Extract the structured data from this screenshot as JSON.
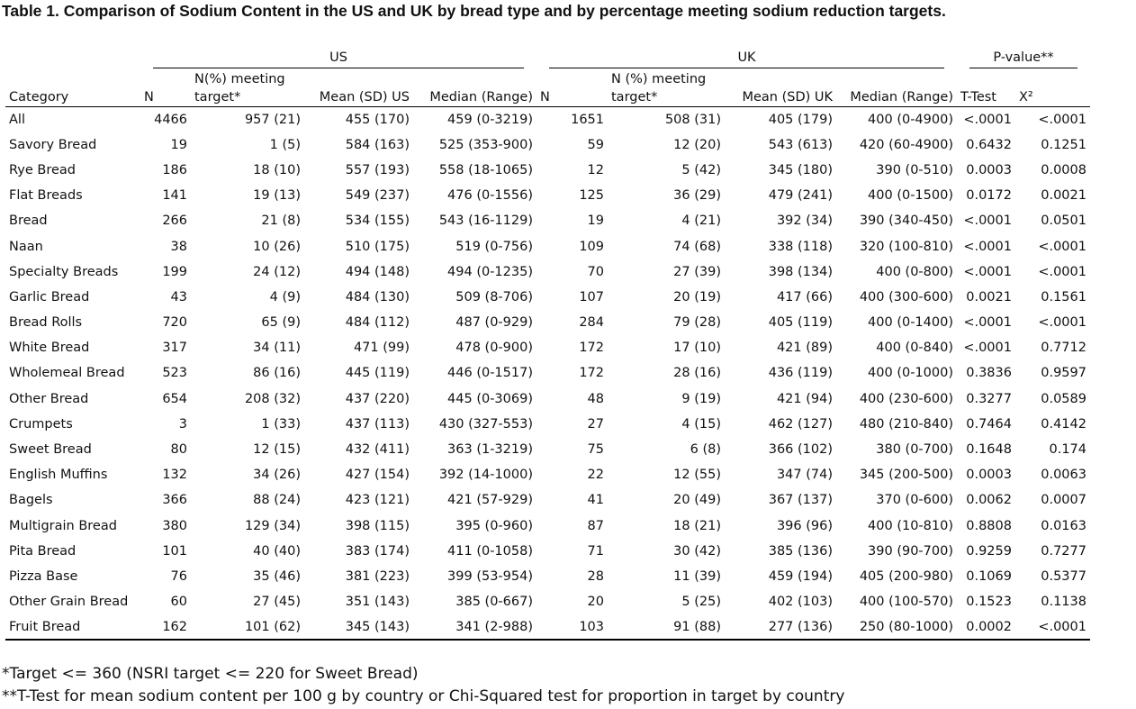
{
  "title": "Table 1. Comparison of Sodium Content in the US and UK by bread type and by percentage meeting sodium reduction targets.",
  "groups": {
    "us": "US",
    "uk": "UK",
    "pvalue": "P-value**"
  },
  "headers": {
    "category": "Category",
    "us_n": "N",
    "us_target_line1": "N(%) meeting",
    "us_target_line2": "target*",
    "us_mean": "Mean (SD) US",
    "us_median": "Median (Range)",
    "uk_n": "N",
    "uk_target_line1": "N (%) meeting",
    "uk_target_line2": "target*",
    "uk_mean": "Mean (SD) UK",
    "uk_median": "Median (Range)",
    "ttest": "T-Test",
    "chisq": "X²"
  },
  "rows": [
    [
      "All",
      "4466",
      "957 (21)",
      "455 (170)",
      "459 (0-3219)",
      "1651",
      "508 (31)",
      "405 (179)",
      "400 (0-4900)",
      "<.0001",
      "<.0001"
    ],
    [
      "Savory Bread",
      "19",
      "1 (5)",
      "584 (163)",
      "525 (353-900)",
      "59",
      "12 (20)",
      "543 (613)",
      "420 (60-4900)",
      "0.6432",
      "0.1251"
    ],
    [
      "Rye Bread",
      "186",
      "18 (10)",
      "557 (193)",
      "558 (18-1065)",
      "12",
      "5 (42)",
      "345 (180)",
      "390 (0-510)",
      "0.0003",
      "0.0008"
    ],
    [
      "Flat Breads",
      "141",
      "19 (13)",
      "549 (237)",
      "476 (0-1556)",
      "125",
      "36 (29)",
      "479 (241)",
      "400 (0-1500)",
      "0.0172",
      "0.0021"
    ],
    [
      "Bread",
      "266",
      "21 (8)",
      "534 (155)",
      "543 (16-1129)",
      "19",
      "4 (21)",
      "392 (34)",
      "390 (340-450)",
      "<.0001",
      "0.0501"
    ],
    [
      "Naan",
      "38",
      "10 (26)",
      "510 (175)",
      "519 (0-756)",
      "109",
      "74 (68)",
      "338 (118)",
      "320 (100-810)",
      "<.0001",
      "<.0001"
    ],
    [
      "Specialty Breads",
      "199",
      "24 (12)",
      "494 (148)",
      "494 (0-1235)",
      "70",
      "27 (39)",
      "398 (134)",
      "400 (0-800)",
      "<.0001",
      "<.0001"
    ],
    [
      "Garlic Bread",
      "43",
      "4 (9)",
      "484 (130)",
      "509 (8-706)",
      "107",
      "20 (19)",
      "417 (66)",
      "400 (300-600)",
      "0.0021",
      "0.1561"
    ],
    [
      "Bread Rolls",
      "720",
      "65 (9)",
      "484 (112)",
      "487 (0-929)",
      "284",
      "79 (28)",
      "405 (119)",
      "400 (0-1400)",
      "<.0001",
      "<.0001"
    ],
    [
      "White Bread",
      "317",
      "34 (11)",
      "471 (99)",
      "478 (0-900)",
      "172",
      "17 (10)",
      "421 (89)",
      "400 (0-840)",
      "<.0001",
      "0.7712"
    ],
    [
      "Wholemeal Bread",
      "523",
      "86 (16)",
      "445 (119)",
      "446 (0-1517)",
      "172",
      "28 (16)",
      "436 (119)",
      "400 (0-1000)",
      "0.3836",
      "0.9597"
    ],
    [
      "Other Bread",
      "654",
      "208 (32)",
      "437 (220)",
      "445 (0-3069)",
      "48",
      "9 (19)",
      "421 (94)",
      "400 (230-600)",
      "0.3277",
      "0.0589"
    ],
    [
      "Crumpets",
      "3",
      "1 (33)",
      "437 (113)",
      "430 (327-553)",
      "27",
      "4 (15)",
      "462 (127)",
      "480 (210-840)",
      "0.7464",
      "0.4142"
    ],
    [
      "Sweet Bread",
      "80",
      "12 (15)",
      "432 (411)",
      "363 (1-3219)",
      "75",
      "6 (8)",
      "366 (102)",
      "380 (0-700)",
      "0.1648",
      "0.174"
    ],
    [
      "English Muffins",
      "132",
      "34 (26)",
      "427 (154)",
      "392 (14-1000)",
      "22",
      "12 (55)",
      "347 (74)",
      "345 (200-500)",
      "0.0003",
      "0.0063"
    ],
    [
      "Bagels",
      "366",
      "88 (24)",
      "423 (121)",
      "421 (57-929)",
      "41",
      "20 (49)",
      "367 (137)",
      "370 (0-600)",
      "0.0062",
      "0.0007"
    ],
    [
      "Multigrain Bread",
      "380",
      "129 (34)",
      "398 (115)",
      "395 (0-960)",
      "87",
      "18 (21)",
      "396 (96)",
      "400 (10-810)",
      "0.8808",
      "0.0163"
    ],
    [
      "Pita Bread",
      "101",
      "40 (40)",
      "383 (174)",
      "411 (0-1058)",
      "71",
      "30 (42)",
      "385 (136)",
      "390 (90-700)",
      "0.9259",
      "0.7277"
    ],
    [
      "Pizza Base",
      "76",
      "35 (46)",
      "381 (223)",
      "399 (53-954)",
      "28",
      "11 (39)",
      "459 (194)",
      "405 (200-980)",
      "0.1069",
      "0.5377"
    ],
    [
      "Other Grain Bread",
      "60",
      "27 (45)",
      "351 (143)",
      "385 (0-667)",
      "20",
      "5 (25)",
      "402 (103)",
      "400 (100-570)",
      "0.1523",
      "0.1138"
    ],
    [
      "Fruit Bread",
      "162",
      "101 (62)",
      "345 (143)",
      "341 (2-988)",
      "103",
      "91 (88)",
      "277 (136)",
      "250 (80-1000)",
      "0.0002",
      "<.0001"
    ]
  ],
  "footnotes": [
    "*Target <= 360 (NSRI target <= 220 for Sweet Bread)",
    "**T-Test for mean sodium content per 100 g by country or Chi-Squared test for proportion in target by country"
  ]
}
